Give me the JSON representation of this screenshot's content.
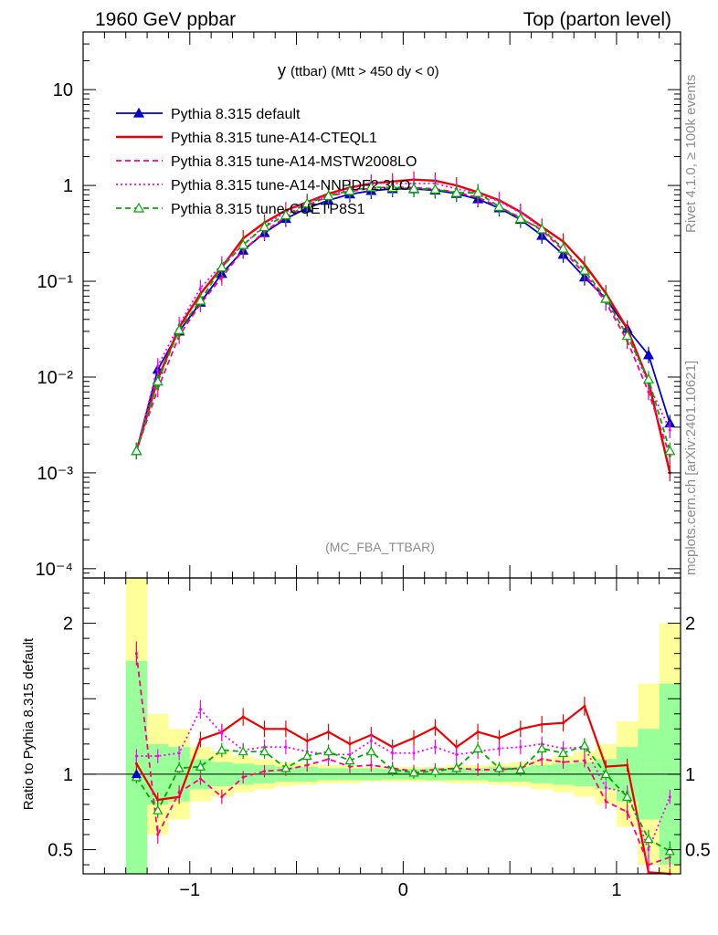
{
  "header": {
    "left": "1960 GeV ppbar",
    "right": "Top (parton level)"
  },
  "side_labels": {
    "rivet": "Rivet 4.1.0, ≥ 100k events",
    "mcplots": "mcplots.cern.ch [arXiv:2401.10621]"
  },
  "chart_data": [
    {
      "type": "line",
      "title_main": "y",
      "title_sub": "(ttbar) (Mtt > 450 dy < 0)",
      "watermark": "(MC_FBA_TTBAR)",
      "yscale": "log",
      "xlim": [
        -1.5,
        1.3
      ],
      "ylim": [
        8e-05,
        40
      ],
      "yticks": [
        {
          "v": 10,
          "label": "10"
        },
        {
          "v": 1,
          "label": "1"
        },
        {
          "v": 0.1,
          "label": "10⁻¹"
        },
        {
          "v": 0.01,
          "label": "10⁻²"
        },
        {
          "v": 0.001,
          "label": "10⁻³"
        },
        {
          "v": 0.0001,
          "label": "10⁻⁴"
        }
      ],
      "x": [
        -1.25,
        -1.15,
        -1.05,
        -0.95,
        -0.85,
        -0.75,
        -0.65,
        -0.55,
        -0.45,
        -0.35,
        -0.25,
        -0.15,
        -0.05,
        0.05,
        0.15,
        0.25,
        0.35,
        0.45,
        0.55,
        0.65,
        0.75,
        0.85,
        0.95,
        1.05,
        1.15,
        1.25
      ],
      "legend_position": "top-left",
      "series": [
        {
          "name": "Pythia 8.315 default",
          "color": "#0000cc",
          "style": "solid-triangle",
          "values": [
            0.0017,
            0.012,
            0.03,
            0.06,
            0.12,
            0.21,
            0.32,
            0.45,
            0.58,
            0.7,
            0.81,
            0.88,
            0.92,
            0.92,
            0.89,
            0.82,
            0.72,
            0.58,
            0.44,
            0.3,
            0.19,
            0.11,
            0.066,
            0.032,
            0.017,
            0.0033
          ]
        },
        {
          "name": "Pythia 8.315 tune-A14-CTEQL1",
          "color": "#ee0000",
          "style": "solid",
          "values": [
            0.0017,
            0.0095,
            0.033,
            0.074,
            0.14,
            0.28,
            0.41,
            0.55,
            0.67,
            0.82,
            0.95,
            1.05,
            1.1,
            1.15,
            1.12,
            1.0,
            0.85,
            0.7,
            0.53,
            0.37,
            0.26,
            0.15,
            0.075,
            0.032,
            0.009,
            0.001
          ]
        },
        {
          "name": "Pythia 8.315 tune-A14-MSTW2008LO",
          "color": "#ff0080",
          "style": "dashed",
          "values": [
            0.0017,
            0.0075,
            0.027,
            0.058,
            0.11,
            0.21,
            0.33,
            0.47,
            0.62,
            0.77,
            0.86,
            0.94,
            0.96,
            0.95,
            0.92,
            0.85,
            0.75,
            0.6,
            0.46,
            0.34,
            0.21,
            0.12,
            0.06,
            0.024,
            0.007,
            0.0015
          ]
        },
        {
          "name": "Pythia 8.315 tune-A14-NNPDF2.3LO",
          "color": "#ff00ff",
          "style": "dotted",
          "values": [
            0.0017,
            0.013,
            0.035,
            0.085,
            0.15,
            0.24,
            0.38,
            0.53,
            0.67,
            0.79,
            0.92,
            1.07,
            1.05,
            1.05,
            1.05,
            0.92,
            0.83,
            0.68,
            0.52,
            0.36,
            0.22,
            0.13,
            0.06,
            0.028,
            0.0085,
            0.0028
          ]
        },
        {
          "name": "Pythia 8.315 tune-CUETP8S1",
          "color": "#00aa00",
          "style": "dashed-open-triangle",
          "values": [
            0.0017,
            0.009,
            0.031,
            0.063,
            0.14,
            0.24,
            0.37,
            0.49,
            0.65,
            0.78,
            0.88,
            0.96,
            0.95,
            0.93,
            0.91,
            0.84,
            0.84,
            0.6,
            0.45,
            0.35,
            0.22,
            0.13,
            0.066,
            0.027,
            0.0095,
            0.0017
          ]
        }
      ]
    },
    {
      "type": "line",
      "ylabel": "Ratio to Pythia 8.315 default",
      "xlim": [
        -1.5,
        1.3
      ],
      "ylim": [
        0.34,
        2.3
      ],
      "xticks": [
        {
          "v": -1,
          "label": "−1"
        },
        {
          "v": 0,
          "label": "0"
        },
        {
          "v": 1,
          "label": "1"
        }
      ],
      "yticks": [
        {
          "v": 2,
          "label": "2"
        },
        {
          "v": 1,
          "label": "1"
        },
        {
          "v": 0.5,
          "label": "0.5"
        }
      ],
      "band_green": [
        0.75,
        0.2,
        0.18,
        0.1,
        0.08,
        0.07,
        0.06,
        0.05,
        0.05,
        0.04,
        0.04,
        0.04,
        0.035,
        0.035,
        0.04,
        0.04,
        0.04,
        0.05,
        0.05,
        0.06,
        0.07,
        0.08,
        0.1,
        0.18,
        0.3,
        0.6
      ],
      "band_yellow": [
        1.3,
        0.4,
        0.3,
        0.18,
        0.15,
        0.12,
        0.1,
        0.08,
        0.07,
        0.06,
        0.06,
        0.05,
        0.05,
        0.05,
        0.05,
        0.06,
        0.06,
        0.07,
        0.08,
        0.1,
        0.12,
        0.15,
        0.2,
        0.35,
        0.6,
        1.0
      ],
      "series": [
        {
          "name": "Pythia 8.315 tune-A14-CTEQL1",
          "color": "#ee0000",
          "values": [
            1.07,
            0.83,
            0.85,
            1.23,
            1.28,
            1.38,
            1.3,
            1.3,
            1.22,
            1.28,
            1.2,
            1.26,
            1.18,
            1.24,
            1.31,
            1.18,
            1.28,
            1.24,
            1.3,
            1.33,
            1.34,
            1.45,
            1.05,
            1.06,
            0.35,
            0.3
          ]
        },
        {
          "name": "Pythia 8.315 tune-A14-MSTW2008LO",
          "color": "#ff0080",
          "values": [
            1.8,
            0.6,
            0.88,
            0.97,
            0.85,
            0.98,
            1.02,
            1.03,
            1.06,
            1.1,
            1.05,
            1.06,
            1.04,
            1.02,
            1.03,
            1.04,
            1.03,
            1.03,
            1.04,
            1.1,
            1.08,
            1.09,
            0.82,
            0.75,
            0.4,
            0.45
          ]
        },
        {
          "name": "Pythia 8.315 tune-A14-NNPDF2.3LO",
          "color": "#ff00ff",
          "values": [
            1.12,
            1.12,
            1.14,
            1.43,
            1.27,
            1.16,
            1.18,
            1.18,
            1.15,
            1.13,
            1.13,
            1.22,
            1.14,
            1.14,
            1.18,
            1.13,
            1.15,
            1.17,
            1.18,
            1.2,
            1.17,
            1.18,
            0.91,
            0.88,
            0.5,
            0.85
          ]
        },
        {
          "name": "Pythia 8.315 tune-CUETP8S1",
          "color": "#00aa00",
          "values": [
            0.98,
            0.76,
            1.04,
            1.05,
            1.16,
            1.15,
            1.15,
            1.04,
            1.12,
            1.15,
            1.09,
            1.15,
            1.03,
            1.01,
            1.02,
            1.04,
            1.17,
            1.04,
            1.03,
            1.17,
            1.14,
            1.19,
            1.0,
            0.85,
            0.57,
            0.49
          ]
        }
      ]
    }
  ]
}
